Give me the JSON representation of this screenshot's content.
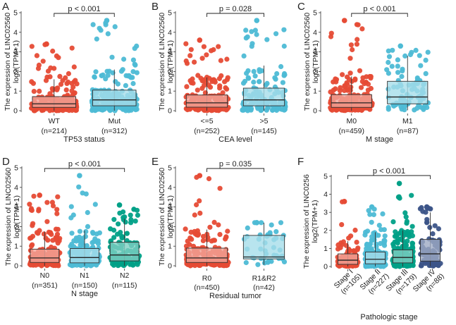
{
  "chart_data": [
    {
      "panel": "A",
      "type": "box",
      "xlabel": "TP53 status",
      "ylabel_lines": [
        "The expression of LINC02560",
        "log2(TPM+1)"
      ],
      "yticks": [
        0,
        1,
        2,
        3,
        4,
        5
      ],
      "ylim": [
        0,
        5
      ],
      "significance": "p < 0.001",
      "groups": [
        {
          "name": "WT",
          "n_label": "(n=214)",
          "n": 214,
          "color": "#E64B35",
          "fill": "#F3A59A",
          "q1": 0.17,
          "median": 0.35,
          "q3": 0.72,
          "whisker_low": 0,
          "whisker_high": 1.6,
          "max_outlier": 3.4
        },
        {
          "name": "Mut",
          "n_label": "(n=312)",
          "n": 312,
          "color": "#4DBBD5",
          "fill": "#A6DDEA",
          "q1": 0.25,
          "median": 0.55,
          "q3": 1.05,
          "whisker_low": 0,
          "whisker_high": 2.1,
          "max_outlier": 4.6
        }
      ]
    },
    {
      "panel": "B",
      "type": "box",
      "xlabel": "CEA level",
      "ylabel_lines": [
        "The expression of LINC02560",
        "log2(TPM+1)"
      ],
      "yticks": [
        0,
        1,
        2,
        3,
        4,
        5
      ],
      "ylim": [
        0,
        5
      ],
      "significance": "p = 0.028",
      "groups": [
        {
          "name": "<=5",
          "n_label": "(n=252)",
          "n": 252,
          "color": "#E64B35",
          "fill": "#F3A59A",
          "q1": 0.18,
          "median": 0.4,
          "q3": 0.8,
          "whisker_low": 0,
          "whisker_high": 1.7,
          "max_outlier": 3.6
        },
        {
          "name": ">5",
          "n_label": "(n=145)",
          "n": 145,
          "color": "#4DBBD5",
          "fill": "#A6DDEA",
          "q1": 0.25,
          "median": 0.55,
          "q3": 1.15,
          "whisker_low": 0,
          "whisker_high": 2.3,
          "max_outlier": 4.6
        }
      ]
    },
    {
      "panel": "C",
      "type": "box",
      "xlabel": "M stage",
      "ylabel_lines": [
        "The expression of LINC02560",
        "log2(TPM+1)"
      ],
      "yticks": [
        0,
        1,
        2,
        3,
        4,
        5
      ],
      "ylim": [
        0,
        5
      ],
      "significance": "p < 0.001",
      "groups": [
        {
          "name": "M0",
          "n_label": "(n=459)",
          "n": 459,
          "color": "#E64B35",
          "fill": "#F3A59A",
          "q1": 0.17,
          "median": 0.4,
          "q3": 0.82,
          "whisker_low": 0,
          "whisker_high": 1.75,
          "max_outlier": 4.6
        },
        {
          "name": "M1",
          "n_label": "(n=87)",
          "n": 87,
          "color": "#4DBBD5",
          "fill": "#A6DDEA",
          "q1": 0.35,
          "median": 0.7,
          "q3": 1.5,
          "whisker_low": 0.02,
          "whisker_high": 2.8,
          "max_outlier": 3.3
        }
      ]
    },
    {
      "panel": "D",
      "type": "box",
      "xlabel": "N stage",
      "ylabel_lines": [
        "The expression of LINC02560",
        "log2(TPM+1)"
      ],
      "yticks": [
        0,
        1,
        2,
        3,
        4,
        5
      ],
      "ylim": [
        0,
        5
      ],
      "significance": "p < 0.001",
      "sig_span": [
        0,
        2
      ],
      "groups": [
        {
          "name": "N0",
          "n_label": "(n=351)",
          "n": 351,
          "color": "#E64B35",
          "fill": "#F3A59A",
          "q1": 0.17,
          "median": 0.4,
          "q3": 0.85,
          "whisker_low": 0,
          "whisker_high": 1.75,
          "max_outlier": 3.6
        },
        {
          "name": "N1",
          "n_label": "(n=150)",
          "n": 150,
          "color": "#4DBBD5",
          "fill": "#A6DDEA",
          "q1": 0.15,
          "median": 0.42,
          "q3": 0.88,
          "whisker_low": 0,
          "whisker_high": 1.8,
          "max_outlier": 4.6
        },
        {
          "name": "N2",
          "n_label": "(n=115)",
          "n": 115,
          "color": "#00A087",
          "fill": "#7FCFC3",
          "q1": 0.25,
          "median": 0.55,
          "q3": 1.2,
          "whisker_low": 0,
          "whisker_high": 2.4,
          "max_outlier": 3.1
        }
      ]
    },
    {
      "panel": "E",
      "type": "box",
      "xlabel": "Residual tumor",
      "ylabel_lines": [
        "The expression of LINC02560",
        "log2(TPM+1)"
      ],
      "yticks": [
        0,
        1,
        2,
        3,
        4,
        5
      ],
      "ylim": [
        0,
        5
      ],
      "significance": "p = 0.035",
      "groups": [
        {
          "name": "R0",
          "n_label": "(n=450)",
          "n": 450,
          "color": "#E64B35",
          "fill": "#F3A59A",
          "q1": 0.17,
          "median": 0.4,
          "q3": 0.9,
          "whisker_low": 0,
          "whisker_high": 1.85,
          "max_outlier": 4.6
        },
        {
          "name": "R1&R2",
          "n_label": "(n=42)",
          "n": 42,
          "color": "#4DBBD5",
          "fill": "#A6DDEA",
          "q1": 0.35,
          "median": 0.45,
          "q3": 1.55,
          "whisker_low": 0.05,
          "whisker_high": 2.2,
          "max_outlier": 2.2
        }
      ]
    },
    {
      "panel": "F",
      "type": "box",
      "xlabel": "Pathologic stage",
      "ylabel_lines": [
        "The expression of LINC0256",
        "log2(TPM+1)"
      ],
      "yticks": [
        0,
        1,
        2,
        3,
        4,
        5
      ],
      "ylim": [
        0,
        5
      ],
      "significance": "p < 0.001",
      "sig_span": [
        0,
        3
      ],
      "rotate_labels": true,
      "groups": [
        {
          "name": "Stage I",
          "n_label": "(n=105)",
          "n": 105,
          "color": "#E64B35",
          "fill": "#F3A59A",
          "q1": 0.12,
          "median": 0.35,
          "q3": 0.7,
          "whisker_low": 0,
          "whisker_high": 1.4,
          "max_outlier": 3.6
        },
        {
          "name": "Stage II",
          "n_label": "(n=227)",
          "n": 227,
          "color": "#4DBBD5",
          "fill": "#A6DDEA",
          "q1": 0.15,
          "median": 0.4,
          "q3": 0.8,
          "whisker_low": 0,
          "whisker_high": 1.9,
          "max_outlier": 3.3
        },
        {
          "name": "Stage III",
          "n_label": "(n=179)",
          "n": 179,
          "color": "#00A087",
          "fill": "#7FCFC3",
          "q1": 0.2,
          "median": 0.5,
          "q3": 0.92,
          "whisker_low": 0,
          "whisker_high": 2.0,
          "max_outlier": 4.6
        },
        {
          "name": "Stage IV",
          "n_label": "(n=88)",
          "n": 88,
          "color": "#3C5488",
          "fill": "#9EAAC4",
          "q1": 0.3,
          "median": 0.7,
          "q3": 1.5,
          "whisker_low": 0.02,
          "whisker_high": 3.0,
          "max_outlier": 3.3
        }
      ]
    }
  ]
}
